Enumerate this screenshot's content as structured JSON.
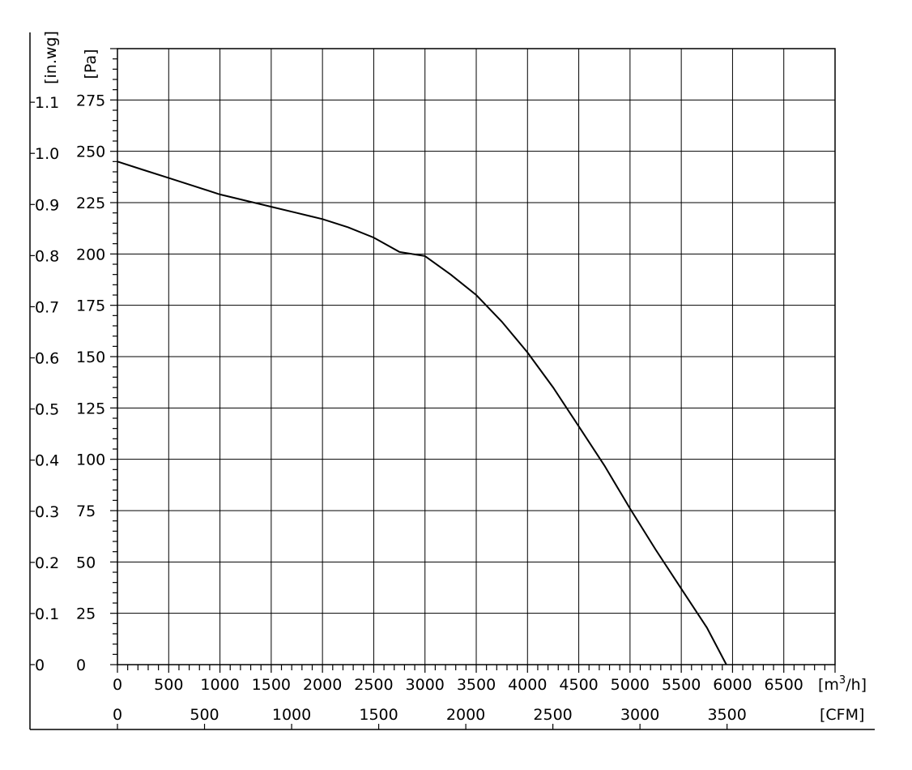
{
  "chart_data": {
    "type": "line",
    "title": "",
    "x_primary": {
      "unit_prefix": "[m",
      "unit_sup": "3",
      "unit_suffix": "/h]",
      "ticks": [
        0,
        500,
        1000,
        1500,
        2000,
        2500,
        3000,
        3500,
        4000,
        4500,
        5000,
        5500,
        6000,
        6500
      ],
      "range": [
        0,
        7000
      ]
    },
    "x_secondary": {
      "unit": "[CFM]",
      "ticks": [
        0,
        500,
        1000,
        1500,
        2000,
        2500,
        3000,
        3500
      ]
    },
    "y_primary": {
      "unit": "[Pa]",
      "ticks": [
        0,
        25,
        50,
        75,
        100,
        125,
        150,
        175,
        200,
        225,
        250,
        275
      ],
      "range": [
        0,
        300
      ]
    },
    "y_secondary": {
      "unit": "[in.wg]",
      "ticks": [
        "0",
        "0.1",
        "0.2",
        "0.3",
        "0.4",
        "0.5",
        "0.6",
        "0.7",
        "0.8",
        "0.9",
        "1.0",
        "1.1"
      ]
    },
    "grid": true,
    "series": [
      {
        "x": [
          0,
          250,
          500,
          750,
          1000,
          1250,
          1500,
          1750,
          2000,
          2250,
          2500,
          2750,
          3000,
          3250,
          3500,
          3750,
          4000,
          4250,
          4500,
          4750,
          5000,
          5250,
          5500,
          5750,
          5940
        ],
        "y": [
          245,
          241,
          237,
          233,
          229,
          226,
          223,
          220,
          217,
          213,
          208,
          201,
          199,
          190,
          180,
          167,
          152,
          135,
          116,
          97,
          76,
          56,
          37,
          18,
          0
        ]
      }
    ]
  }
}
